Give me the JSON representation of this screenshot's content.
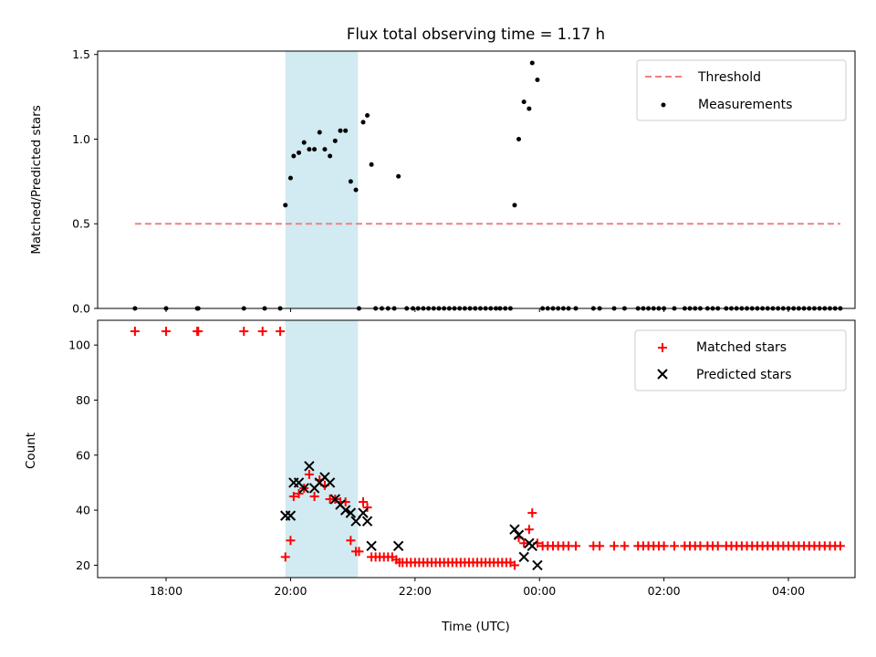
{
  "chart_data": {
    "title": "Flux total observing time = 1.17 h",
    "highlight_span": [
      "19:55",
      "21:05"
    ],
    "x_axis": {
      "label": "Time (UTC)",
      "ticks": [
        {
          "t": "18:00",
          "label": "18:00"
        },
        {
          "t": "20:00",
          "label": "20:00"
        },
        {
          "t": "22:00",
          "label": "22:00"
        },
        {
          "t": "00:00",
          "label": "00:00"
        },
        {
          "t": "02:00",
          "label": "02:00"
        },
        {
          "t": "04:00",
          "label": "04:00"
        }
      ]
    },
    "top": {
      "type": "scatter",
      "ylabel": "Matched/Predicted stars",
      "ylim": [
        0,
        1.52
      ],
      "yticks": [
        {
          "v": 0,
          "label": "0.0"
        },
        {
          "v": 0.5,
          "label": "0.5"
        },
        {
          "v": 1.0,
          "label": "1.0"
        },
        {
          "v": 1.5,
          "label": "1.5"
        }
      ],
      "legend": {
        "position": "top-right",
        "threshold_label": "Threshold",
        "measurements_label": "Measurements"
      },
      "threshold": {
        "value": 0.5,
        "x_start": "17:30",
        "x_end": "04:50",
        "color": "#f08080"
      },
      "measurements": [
        [
          "17:30",
          0
        ],
        [
          "18:00",
          0
        ],
        [
          "18:30",
          0
        ],
        [
          "18:31",
          0
        ],
        [
          "19:15",
          0
        ],
        [
          "19:35",
          0
        ],
        [
          "19:50",
          0
        ],
        [
          "19:55",
          0.61
        ],
        [
          "20:00",
          0.77
        ],
        [
          "20:03",
          0.9
        ],
        [
          "20:08",
          0.92
        ],
        [
          "20:13",
          0.98
        ],
        [
          "20:18",
          0.94
        ],
        [
          "20:23",
          0.94
        ],
        [
          "20:28",
          1.04
        ],
        [
          "20:33",
          0.94
        ],
        [
          "20:38",
          0.9
        ],
        [
          "20:43",
          0.99
        ],
        [
          "20:48",
          1.05
        ],
        [
          "20:53",
          1.05
        ],
        [
          "20:58",
          0.75
        ],
        [
          "21:03",
          0.7
        ],
        [
          "21:06",
          0
        ],
        [
          "21:10",
          1.1
        ],
        [
          "21:14",
          1.14
        ],
        [
          "21:18",
          0.85
        ],
        [
          "21:22",
          0
        ],
        [
          "21:28",
          0
        ],
        [
          "21:34",
          0
        ],
        [
          "21:40",
          0
        ],
        [
          "21:44",
          0.78
        ],
        [
          "21:52",
          0
        ],
        [
          "21:58",
          0
        ],
        [
          "22:03",
          0
        ],
        [
          "22:08",
          0
        ],
        [
          "22:13",
          0
        ],
        [
          "22:18",
          0
        ],
        [
          "22:23",
          0
        ],
        [
          "22:28",
          0
        ],
        [
          "22:33",
          0
        ],
        [
          "22:38",
          0
        ],
        [
          "22:43",
          0
        ],
        [
          "22:48",
          0
        ],
        [
          "22:53",
          0
        ],
        [
          "22:58",
          0
        ],
        [
          "23:03",
          0
        ],
        [
          "23:08",
          0
        ],
        [
          "23:13",
          0
        ],
        [
          "23:18",
          0
        ],
        [
          "23:22",
          0
        ],
        [
          "23:27",
          0
        ],
        [
          "23:32",
          0
        ],
        [
          "23:36",
          0.61
        ],
        [
          "23:40",
          1.0
        ],
        [
          "23:45",
          1.22
        ],
        [
          "23:50",
          1.18
        ],
        [
          "23:53",
          1.45
        ],
        [
          "23:58",
          1.35
        ],
        [
          "00:03",
          0
        ],
        [
          "00:08",
          0
        ],
        [
          "00:13",
          0
        ],
        [
          "00:18",
          0
        ],
        [
          "00:23",
          0
        ],
        [
          "00:28",
          0
        ],
        [
          "00:35",
          0
        ],
        [
          "00:52",
          0
        ],
        [
          "00:58",
          0
        ],
        [
          "01:12",
          0
        ],
        [
          "01:22",
          0
        ],
        [
          "01:35",
          0
        ],
        [
          "01:40",
          0
        ],
        [
          "01:45",
          0
        ],
        [
          "01:50",
          0
        ],
        [
          "01:55",
          0
        ],
        [
          "02:00",
          0
        ],
        [
          "02:10",
          0
        ],
        [
          "02:20",
          0
        ],
        [
          "02:25",
          0
        ],
        [
          "02:30",
          0
        ],
        [
          "02:35",
          0
        ],
        [
          "02:42",
          0
        ],
        [
          "02:47",
          0
        ],
        [
          "02:52",
          0
        ],
        [
          "03:00",
          0
        ],
        [
          "03:05",
          0
        ],
        [
          "03:10",
          0
        ],
        [
          "03:15",
          0
        ],
        [
          "03:20",
          0
        ],
        [
          "03:25",
          0
        ],
        [
          "03:30",
          0
        ],
        [
          "03:35",
          0
        ],
        [
          "03:40",
          0
        ],
        [
          "03:45",
          0
        ],
        [
          "03:50",
          0
        ],
        [
          "03:55",
          0
        ],
        [
          "04:00",
          0
        ],
        [
          "04:05",
          0
        ],
        [
          "04:10",
          0
        ],
        [
          "04:15",
          0
        ],
        [
          "04:20",
          0
        ],
        [
          "04:25",
          0
        ],
        [
          "04:30",
          0
        ],
        [
          "04:35",
          0
        ],
        [
          "04:40",
          0
        ],
        [
          "04:45",
          0
        ],
        [
          "04:50",
          0
        ]
      ]
    },
    "bottom": {
      "type": "scatter",
      "ylabel": "Count",
      "ylim": [
        15.5,
        109
      ],
      "yticks": [
        {
          "v": 20,
          "label": "20"
        },
        {
          "v": 40,
          "label": "40"
        },
        {
          "v": 60,
          "label": "60"
        },
        {
          "v": 80,
          "label": "80"
        },
        {
          "v": 100,
          "label": "100"
        }
      ],
      "legend": {
        "position": "top-right",
        "matched_label": "Matched stars",
        "predicted_label": "Predicted stars"
      },
      "series": [
        {
          "name": "Matched stars",
          "marker": "plus",
          "color": "#ff0000",
          "points": [
            [
              "17:30",
              105
            ],
            [
              "18:00",
              105
            ],
            [
              "18:30",
              105
            ],
            [
              "18:31",
              105
            ],
            [
              "19:15",
              105
            ],
            [
              "19:33",
              105
            ],
            [
              "19:50",
              105
            ],
            [
              "19:55",
              23
            ],
            [
              "20:00",
              29
            ],
            [
              "20:03",
              45
            ],
            [
              "20:08",
              46
            ],
            [
              "20:13",
              48
            ],
            [
              "20:18",
              53
            ],
            [
              "20:23",
              45
            ],
            [
              "20:28",
              51
            ],
            [
              "20:33",
              49
            ],
            [
              "20:38",
              44
            ],
            [
              "20:43",
              44
            ],
            [
              "20:48",
              43
            ],
            [
              "20:53",
              43
            ],
            [
              "20:58",
              29
            ],
            [
              "21:03",
              25
            ],
            [
              "21:06",
              25
            ],
            [
              "21:10",
              43
            ],
            [
              "21:14",
              41
            ],
            [
              "21:18",
              23
            ],
            [
              "21:22",
              23
            ],
            [
              "21:26",
              23
            ],
            [
              "21:30",
              23
            ],
            [
              "21:34",
              23
            ],
            [
              "21:38",
              23
            ],
            [
              "21:42",
              22
            ],
            [
              "21:45",
              21
            ],
            [
              "21:48",
              21
            ],
            [
              "21:52",
              21
            ],
            [
              "21:56",
              21
            ],
            [
              "22:00",
              21
            ],
            [
              "22:04",
              21
            ],
            [
              "22:08",
              21
            ],
            [
              "22:12",
              21
            ],
            [
              "22:16",
              21
            ],
            [
              "22:20",
              21
            ],
            [
              "22:24",
              21
            ],
            [
              "22:28",
              21
            ],
            [
              "22:32",
              21
            ],
            [
              "22:36",
              21
            ],
            [
              "22:40",
              21
            ],
            [
              "22:44",
              21
            ],
            [
              "22:48",
              21
            ],
            [
              "22:52",
              21
            ],
            [
              "22:56",
              21
            ],
            [
              "23:00",
              21
            ],
            [
              "23:04",
              21
            ],
            [
              "23:08",
              21
            ],
            [
              "23:12",
              21
            ],
            [
              "23:16",
              21
            ],
            [
              "23:20",
              21
            ],
            [
              "23:24",
              21
            ],
            [
              "23:28",
              21
            ],
            [
              "23:32",
              21
            ],
            [
              "23:36",
              20
            ],
            [
              "23:40",
              30
            ],
            [
              "23:45",
              28
            ],
            [
              "23:50",
              33
            ],
            [
              "23:53",
              39
            ],
            [
              "23:58",
              28
            ],
            [
              "00:03",
              27
            ],
            [
              "00:08",
              27
            ],
            [
              "00:13",
              27
            ],
            [
              "00:18",
              27
            ],
            [
              "00:23",
              27
            ],
            [
              "00:28",
              27
            ],
            [
              "00:35",
              27
            ],
            [
              "00:52",
              27
            ],
            [
              "00:58",
              27
            ],
            [
              "01:12",
              27
            ],
            [
              "01:22",
              27
            ],
            [
              "01:35",
              27
            ],
            [
              "01:40",
              27
            ],
            [
              "01:45",
              27
            ],
            [
              "01:50",
              27
            ],
            [
              "01:55",
              27
            ],
            [
              "02:00",
              27
            ],
            [
              "02:10",
              27
            ],
            [
              "02:20",
              27
            ],
            [
              "02:25",
              27
            ],
            [
              "02:30",
              27
            ],
            [
              "02:35",
              27
            ],
            [
              "02:42",
              27
            ],
            [
              "02:47",
              27
            ],
            [
              "02:52",
              27
            ],
            [
              "03:00",
              27
            ],
            [
              "03:05",
              27
            ],
            [
              "03:10",
              27
            ],
            [
              "03:15",
              27
            ],
            [
              "03:20",
              27
            ],
            [
              "03:25",
              27
            ],
            [
              "03:30",
              27
            ],
            [
              "03:35",
              27
            ],
            [
              "03:40",
              27
            ],
            [
              "03:45",
              27
            ],
            [
              "03:50",
              27
            ],
            [
              "03:55",
              27
            ],
            [
              "04:00",
              27
            ],
            [
              "04:05",
              27
            ],
            [
              "04:10",
              27
            ],
            [
              "04:15",
              27
            ],
            [
              "04:20",
              27
            ],
            [
              "04:25",
              27
            ],
            [
              "04:30",
              27
            ],
            [
              "04:35",
              27
            ],
            [
              "04:40",
              27
            ],
            [
              "04:45",
              27
            ],
            [
              "04:50",
              27
            ]
          ]
        },
        {
          "name": "Predicted stars",
          "marker": "x",
          "color": "#000000",
          "points": [
            [
              "19:55",
              38
            ],
            [
              "20:00",
              38
            ],
            [
              "20:03",
              50
            ],
            [
              "20:08",
              50
            ],
            [
              "20:13",
              48
            ],
            [
              "20:18",
              56
            ],
            [
              "20:23",
              48
            ],
            [
              "20:28",
              50
            ],
            [
              "20:33",
              52
            ],
            [
              "20:38",
              50
            ],
            [
              "20:43",
              44
            ],
            [
              "20:48",
              42
            ],
            [
              "20:53",
              40
            ],
            [
              "20:58",
              39
            ],
            [
              "21:03",
              36
            ],
            [
              "21:10",
              39
            ],
            [
              "21:14",
              36
            ],
            [
              "21:18",
              27
            ],
            [
              "21:44",
              27
            ],
            [
              "23:36",
              33
            ],
            [
              "23:40",
              31
            ],
            [
              "23:45",
              23
            ],
            [
              "23:50",
              28
            ],
            [
              "23:53",
              27
            ],
            [
              "23:58",
              20
            ]
          ]
        }
      ]
    }
  }
}
